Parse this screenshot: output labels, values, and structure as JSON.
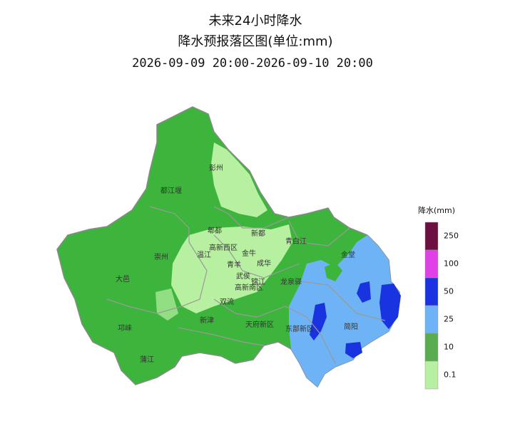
{
  "header": {
    "title": "未来24小时降水",
    "subtitle": "降水预报落区图(单位:mm)",
    "period": "2026-09-09 20:00-2026-09-10 20:00"
  },
  "legend": {
    "title": "降水(mm)",
    "items": [
      {
        "label": "250",
        "color": "#6b1040"
      },
      {
        "label": "100",
        "color": "#e040e8"
      },
      {
        "label": "50",
        "color": "#1a33e0"
      },
      {
        "label": "25",
        "color": "#6db3f5"
      },
      {
        "label": "10",
        "color": "#5aad4e"
      },
      {
        "label": "0.1",
        "color": "#b7f0a0"
      }
    ]
  },
  "districts": [
    "彭州",
    "都江堰",
    "郫都",
    "新都",
    "青白江",
    "高新西区",
    "温江",
    "金牛",
    "金堂",
    "崇州",
    "青羊",
    "成华",
    "武侯",
    "锦江",
    "龙泉驿",
    "大邑",
    "高新南区",
    "双流",
    "新津",
    "天府新区",
    "东部新区",
    "简阳",
    "邛崃",
    "蒲江"
  ]
}
